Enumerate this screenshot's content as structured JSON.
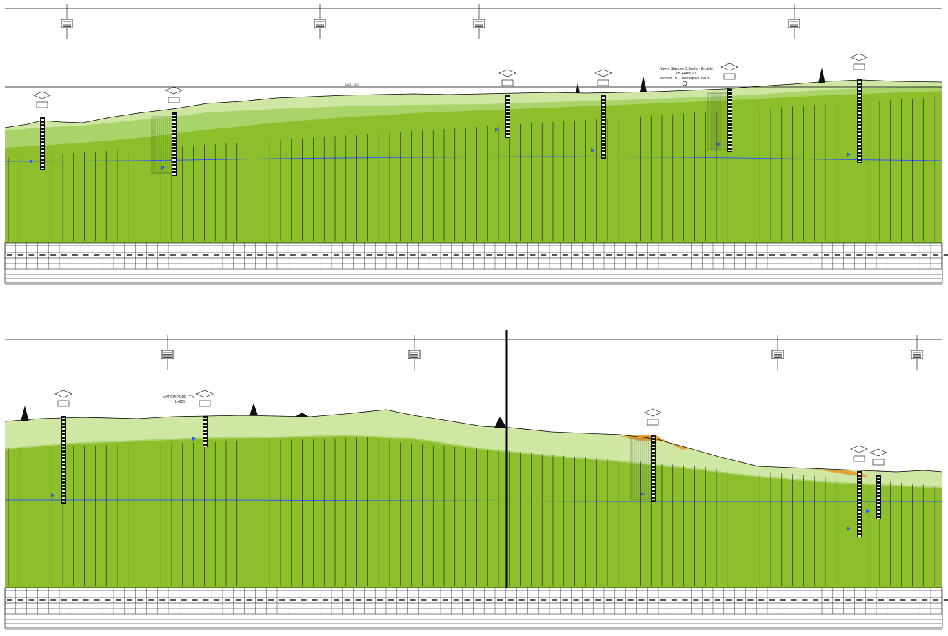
{
  "colors": {
    "upper_layer": "#cfe7a3",
    "middle_layer": "#a9d46a",
    "lower_layer": "#8cbf2b",
    "groundwater_line": "#2b57ff",
    "fill_deposit": "#e3a334",
    "ink": "#000000"
  },
  "panels": [
    {
      "title_top": "SA01 - 3G7",
      "station_block_label": "Nuova Stazione S.Spirito - Ercitelo",
      "station_block_line2": "km ++465.00",
      "station_block_line3": "Modulo 750 - Marciapiedi 250 m"
    },
    {
      "alignment_label": "MARCIAPIEDE FFM",
      "alignment_label_2": "L=625"
    }
  ]
}
